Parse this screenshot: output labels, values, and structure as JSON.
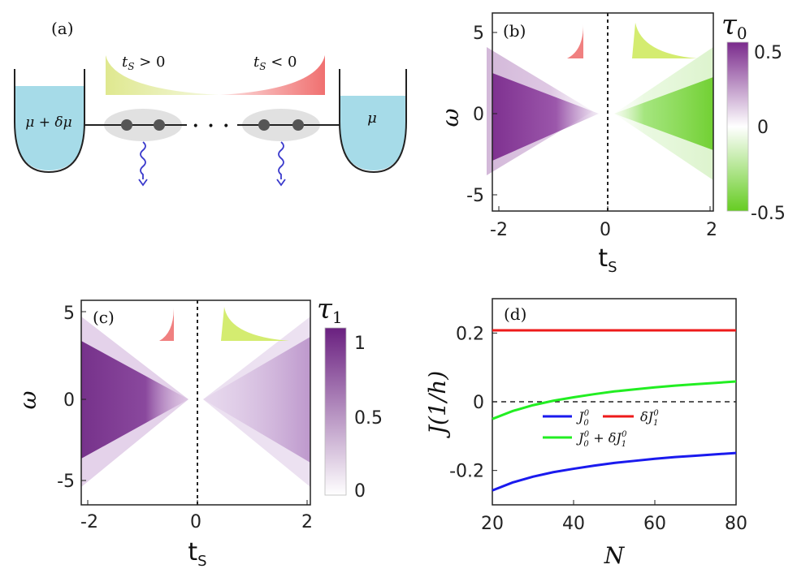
{
  "colors": {
    "purple": "#7a2a8c",
    "green": "#66cc22",
    "reservoir": "#a6dbe8",
    "dot": "#555555",
    "blob": "#d9d9d9",
    "wave": "#3a3acc",
    "red_inset": "#f08080",
    "green_inset": "#d4ec70",
    "blue_line": "#1a1aee",
    "red_line": "#ee1a1a",
    "green_line": "#22ee22"
  },
  "panel_a": {
    "label": "(a)",
    "ts_pos_prefix": "t",
    "ts_pos_sub": "S",
    "ts_pos_rel": " > 0",
    "ts_neg_prefix": "t",
    "ts_neg_sub": "S",
    "ts_neg_rel": " < 0",
    "left_reservoir": "μ + δμ",
    "right_reservoir": "μ",
    "ellipsis": "• • •"
  },
  "chart_data": [
    {
      "id": "b",
      "type": "heatmap",
      "panel_label": "(b)",
      "xlabel": "t",
      "xlabel_sub": "S",
      "ylabel": "ω",
      "xlim": [
        -2,
        2
      ],
      "ylim": [
        -6,
        6
      ],
      "xticks": [
        "-2",
        "0",
        "2"
      ],
      "yticks": [
        "5",
        "0",
        "-5"
      ],
      "colorbar_title": "τ",
      "colorbar_sub": "0",
      "colorbar_range": [
        -0.5,
        0.5
      ],
      "colorbar_ticks": [
        "0.5",
        "0",
        "-0.5"
      ],
      "description": "left half (t_S<0): purple wedge peak ~0.5 narrowing toward t_S=0; right half: green wedge ~-0.4 widening toward t_S=2"
    },
    {
      "id": "c",
      "type": "heatmap",
      "panel_label": "(c)",
      "xlabel": "t",
      "xlabel_sub": "S",
      "ylabel": "ω",
      "xlim": [
        -2,
        2
      ],
      "ylim": [
        -6,
        6
      ],
      "xticks": [
        "-2",
        "0",
        "2"
      ],
      "yticks": [
        "5",
        "0",
        "-5"
      ],
      "colorbar_title": "τ",
      "colorbar_sub": "1",
      "colorbar_range": [
        0,
        1.1
      ],
      "colorbar_ticks": [
        "1",
        "0.5",
        "0"
      ],
      "description": "both halves purple wedges, left stronger (~1), right weaker (~0.4)"
    },
    {
      "id": "d",
      "type": "line",
      "panel_label": "(d)",
      "xlabel": "N",
      "ylabel": "J(1/h)",
      "xlim": [
        20,
        80
      ],
      "ylim": [
        -0.3,
        0.3
      ],
      "xticks": [
        20,
        40,
        60,
        80
      ],
      "yticks": [
        0.2,
        0,
        -0.2
      ],
      "ytick_labels": [
        "0.2",
        "0",
        "-0.2"
      ],
      "x": [
        20,
        25,
        30,
        35,
        40,
        45,
        50,
        55,
        60,
        65,
        70,
        75,
        80
      ],
      "series": [
        {
          "name": "J00",
          "label_main": "J",
          "label_sub": "0",
          "label_sup": "0",
          "values": [
            -0.258,
            -0.235,
            -0.218,
            -0.205,
            -0.195,
            -0.186,
            -0.178,
            -0.172,
            -0.166,
            -0.161,
            -0.157,
            -0.153,
            -0.149
          ]
        },
        {
          "name": "dJ10",
          "label_main": "δJ",
          "label_sub": "1",
          "label_sup": "0",
          "values": [
            0.208,
            0.208,
            0.208,
            0.208,
            0.208,
            0.208,
            0.208,
            0.208,
            0.208,
            0.208,
            0.208,
            0.208,
            0.208
          ]
        },
        {
          "name": "sum",
          "label_main": "J",
          "label_sub": "0",
          "label_sup": "0",
          "label_plus": " + δJ",
          "label_sub2": "1",
          "label_sup2": "0",
          "values": [
            -0.05,
            -0.027,
            -0.01,
            0.003,
            0.013,
            0.022,
            0.03,
            0.036,
            0.042,
            0.047,
            0.051,
            0.055,
            0.059
          ]
        }
      ],
      "dashed_zero_line": true
    }
  ]
}
